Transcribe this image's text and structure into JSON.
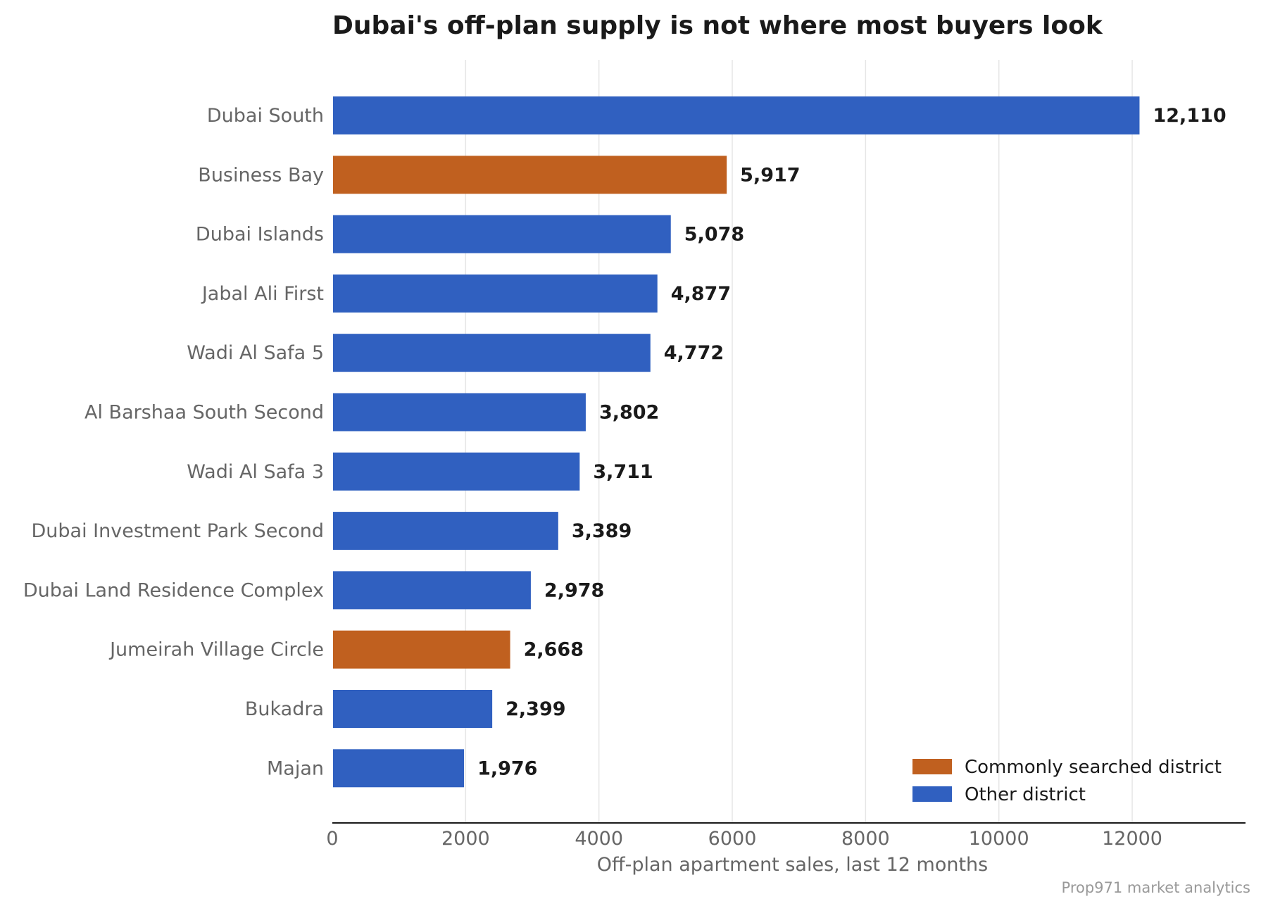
{
  "chart_data": {
    "type": "bar",
    "orientation": "horizontal",
    "title": "Dubai's off-plan supply is not where most buyers look",
    "xlabel": "Off-plan apartment sales, last 12 months",
    "ylabel": "",
    "xlim": [
      0,
      13700
    ],
    "xticks": [
      0,
      2000,
      4000,
      6000,
      8000,
      10000,
      12000
    ],
    "grid": "vertical",
    "legend_position": "bottom-right",
    "categories": [
      "Dubai South",
      "Business Bay",
      "Dubai Islands",
      "Jabal Ali First",
      "Wadi Al Safa 5",
      "Al Barshaa South Second",
      "Wadi Al Safa 3",
      "Dubai Investment Park Second",
      "Dubai Land Residence Complex",
      "Jumeirah Village Circle",
      "Bukadra",
      "Majan"
    ],
    "values": [
      12110,
      5917,
      5078,
      4877,
      4772,
      3802,
      3711,
      3389,
      2978,
      2668,
      2399,
      1976
    ],
    "value_labels": [
      "12,110",
      "5,917",
      "5,078",
      "4,877",
      "4,772",
      "3,802",
      "3,711",
      "3,389",
      "2,978",
      "2,668",
      "2,399",
      "1,976"
    ],
    "groups": [
      "other",
      "searched",
      "other",
      "other",
      "other",
      "other",
      "other",
      "other",
      "other",
      "searched",
      "other",
      "other"
    ],
    "legend": [
      {
        "key": "searched",
        "label": "Commonly searched district",
        "color": "#c0601f"
      },
      {
        "key": "other",
        "label": "Other district",
        "color": "#3060c0"
      }
    ],
    "source": "Prop971 market analytics"
  }
}
